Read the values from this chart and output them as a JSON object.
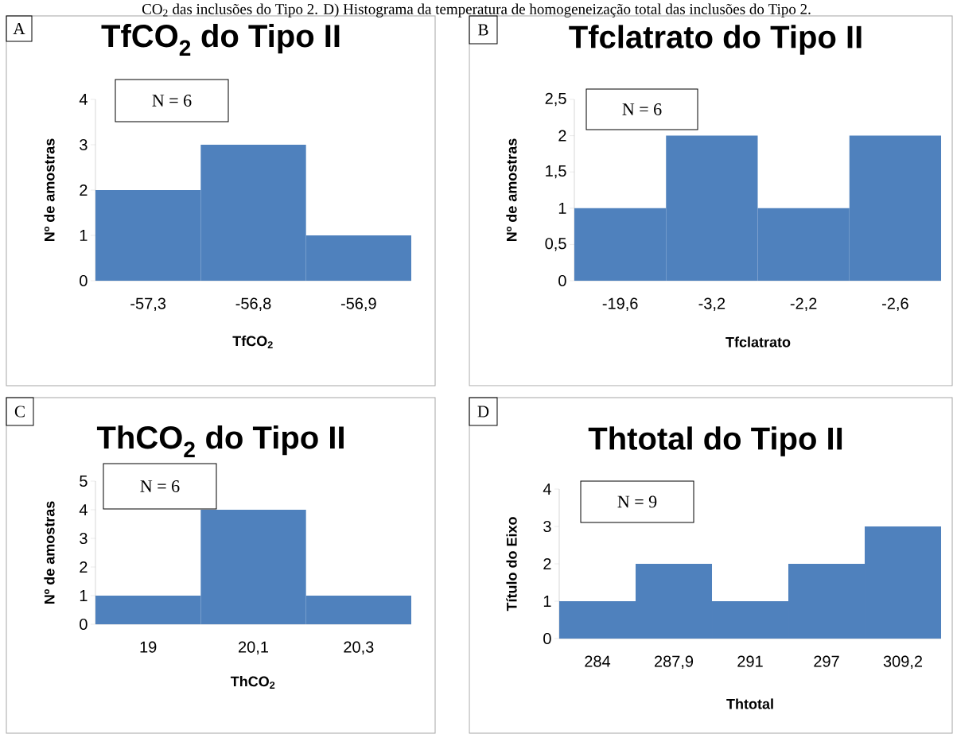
{
  "chart_data": [
    {
      "type": "bar",
      "title": "TfCO$_{2}$ do Tipo II",
      "xlabel": "TfCO$_{2}$",
      "ylabel": "Nº de amostras",
      "categories": [
        "-57,3",
        "-56,8",
        "-56,9"
      ],
      "values": [
        2,
        3,
        1
      ],
      "color": "#4f81bd",
      "ylim": [
        0,
        4
      ],
      "yticks": [
        0,
        1,
        2,
        3,
        4
      ],
      "grid": false,
      "annotations": [
        "A",
        "N = 6",
        "CO$_{2}$ das inclusões do Tipo 2. D) Histograma da temperatura de homogeneização total das inclusões do Tipo 2."
      ]
    },
    {
      "type": "bar",
      "title": "Tfclatrato do Tipo II",
      "xlabel": "Tfclatrato",
      "ylabel": "Nº de amostras",
      "categories": [
        "-19,6",
        "-3,2",
        "-2,2",
        "-2,6"
      ],
      "values": [
        1,
        2,
        1,
        2
      ],
      "color": "#4f81bd",
      "ylim": [
        0,
        2.5
      ],
      "yticks": [
        0,
        {
          "value": 0.5,
          "label": "0,5"
        },
        1,
        {
          "value": 1.5,
          "label": "1,5"
        },
        2,
        {
          "value": 2.5,
          "label": "2,5"
        }
      ],
      "grid": false,
      "annotations": [
        "B",
        "N = 6"
      ]
    },
    {
      "type": "bar",
      "title": "ThCO$_{2}$ do Tipo II",
      "xlabel": "ThCO$_{2}$",
      "ylabel": "Nº de amostras",
      "categories": [
        "19",
        "20,1",
        "20,3"
      ],
      "values": [
        1,
        4,
        1
      ],
      "color": "#4f81bd",
      "ylim": [
        0,
        5
      ],
      "yticks": [
        0,
        1,
        2,
        3,
        4,
        5
      ],
      "grid": false,
      "annotations": [
        "C",
        "N = 6"
      ]
    },
    {
      "type": "bar",
      "title": "Thtotal do Tipo II",
      "xlabel": "Thtotal",
      "ylabel": "Título do Eixo",
      "categories": [
        "284",
        "287,9",
        "291",
        "297",
        "309,2"
      ],
      "values": [
        1,
        2,
        1,
        2,
        3
      ],
      "color": "#4f81bd",
      "ylim": [
        0,
        4
      ],
      "yticks": [
        0,
        1,
        2,
        3,
        4
      ],
      "grid": false,
      "annotations": [
        "D",
        "N = 9"
      ]
    }
  ]
}
